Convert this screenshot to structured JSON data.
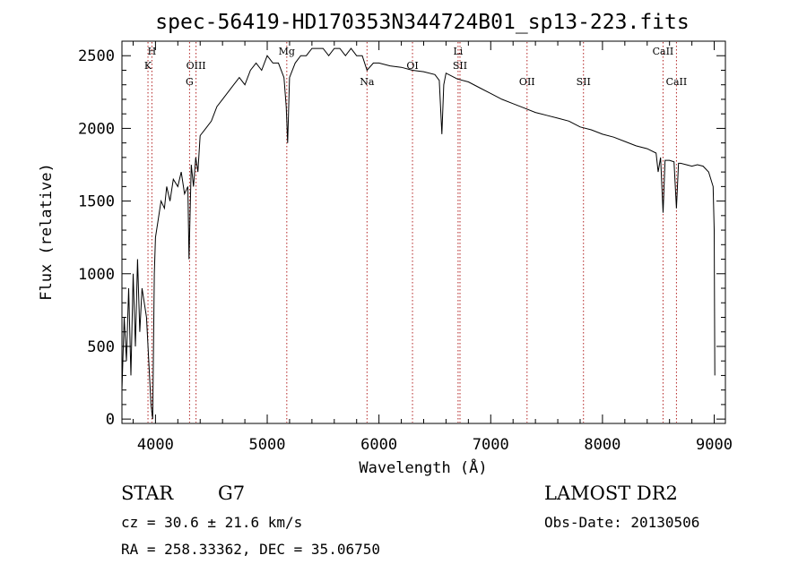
{
  "chart_data": {
    "type": "line",
    "title": "spec-56419-HD170353N344724B01_sp13-223.fits",
    "xlabel": "Wavelength (Å)",
    "ylabel": "Flux (relative)",
    "xlim": [
      3700,
      9100
    ],
    "ylim": [
      -30,
      2600
    ],
    "xticks": [
      4000,
      5000,
      6000,
      7000,
      8000,
      9000
    ],
    "yticks": [
      0,
      500,
      1000,
      1500,
      2000,
      2500
    ],
    "grid": false,
    "legend": "none",
    "series": [
      {
        "x": [
          3700,
          3720,
          3740,
          3760,
          3780,
          3800,
          3820,
          3840,
          3860,
          3880,
          3900,
          3920,
          3940,
          3960,
          3975,
          3990,
          4000,
          4020,
          4050,
          4080,
          4100,
          4130,
          4160,
          4200,
          4230,
          4260,
          4290,
          4300,
          4320,
          4340,
          4360,
          4380,
          4400,
          4450,
          4500,
          4550,
          4600,
          4650,
          4700,
          4750,
          4800,
          4850,
          4900,
          4950,
          5000,
          5050,
          5100,
          5150,
          5170,
          5183,
          5200,
          5250,
          5300,
          5350,
          5400,
          5450,
          5500,
          5550,
          5600,
          5650,
          5700,
          5750,
          5800,
          5850,
          5893,
          5950,
          6000,
          6100,
          6200,
          6300,
          6400,
          6500,
          6540,
          6563,
          6580,
          6600,
          6700,
          6800,
          6900,
          7000,
          7100,
          7200,
          7300,
          7400,
          7500,
          7600,
          7700,
          7800,
          7900,
          8000,
          8100,
          8200,
          8300,
          8400,
          8480,
          8498,
          8520,
          8542,
          8560,
          8600,
          8640,
          8662,
          8680,
          8700,
          8750,
          8800,
          8850,
          8900,
          8950,
          8990,
          9000,
          9005
        ],
        "y": [
          200,
          700,
          400,
          900,
          300,
          1000,
          500,
          1100,
          600,
          900,
          800,
          700,
          400,
          100,
          0,
          1000,
          1250,
          1350,
          1500,
          1450,
          1600,
          1500,
          1650,
          1600,
          1700,
          1550,
          1600,
          1100,
          1750,
          1600,
          1800,
          1700,
          1950,
          2000,
          2050,
          2150,
          2200,
          2250,
          2300,
          2350,
          2300,
          2400,
          2450,
          2400,
          2500,
          2450,
          2450,
          2350,
          2150,
          1900,
          2350,
          2450,
          2500,
          2500,
          2550,
          2550,
          2550,
          2500,
          2550,
          2550,
          2500,
          2550,
          2500,
          2500,
          2400,
          2450,
          2450,
          2430,
          2420,
          2400,
          2390,
          2370,
          2330,
          1960,
          2300,
          2380,
          2340,
          2320,
          2280,
          2240,
          2200,
          2170,
          2140,
          2110,
          2090,
          2070,
          2050,
          2010,
          1990,
          1960,
          1940,
          1910,
          1880,
          1860,
          1830,
          1700,
          1800,
          1420,
          1780,
          1780,
          1770,
          1450,
          1760,
          1760,
          1750,
          1740,
          1750,
          1740,
          1700,
          1600,
          1300,
          300
        ]
      }
    ],
    "line_markers": [
      {
        "label": "H",
        "x": 3968,
        "row": 1
      },
      {
        "label": "K",
        "x": 3933,
        "row": 2
      },
      {
        "label": "OIII",
        "x": 4363,
        "row": 2
      },
      {
        "label": "G",
        "x": 4305,
        "row": 3
      },
      {
        "label": "Mg",
        "x": 5175,
        "row": 1
      },
      {
        "label": "Na",
        "x": 5893,
        "row": 3
      },
      {
        "label": "OI",
        "x": 6300,
        "row": 2
      },
      {
        "label": "Li",
        "x": 6708,
        "row": 1
      },
      {
        "label": "SII",
        "x": 6725,
        "row": 2
      },
      {
        "label": "OII",
        "x": 7325,
        "row": 3
      },
      {
        "label": "SII",
        "x": 7830,
        "row": 3
      },
      {
        "label": "CaII",
        "x": 8542,
        "row": 1
      },
      {
        "label": "CaII",
        "x": 8662,
        "row": 3
      }
    ]
  },
  "info": {
    "object_type": "STAR",
    "subclass": "G7",
    "redshift": "cz = 30.6 ± 21.6 km/s",
    "coords": "RA = 258.33362, DEC =  35.06750",
    "survey": "LAMOST DR2",
    "obs_date": "Obs-Date: 20130506"
  }
}
